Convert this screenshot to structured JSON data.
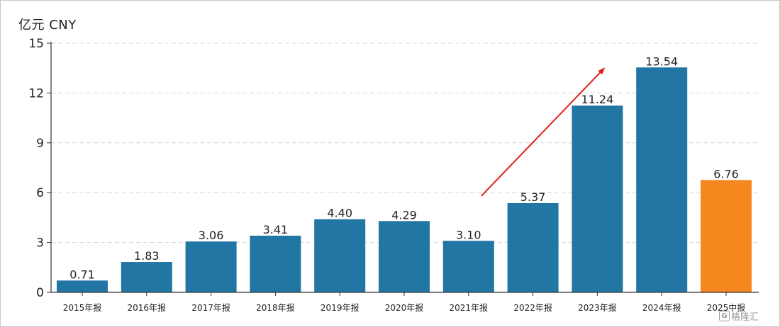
{
  "unit_label": "亿元  CNY",
  "watermark": "格隆汇",
  "colors": {
    "bar": "#2176a3",
    "highlight": "#f5871f",
    "trend_arrow": "#e0201b",
    "grid": "#d5d5d5"
  },
  "chart_data": {
    "type": "bar",
    "categories": [
      "2015年报",
      "2016年报",
      "2017年报",
      "2018年报",
      "2019年报",
      "2020年报",
      "2021年报",
      "2022年报",
      "2023年报",
      "2024年报",
      "2025中报"
    ],
    "values": [
      0.71,
      1.83,
      3.06,
      3.41,
      4.4,
      4.29,
      3.1,
      5.37,
      11.24,
      13.54,
      6.76
    ],
    "data_labels": [
      "0.71",
      "1.83",
      "3.06",
      "3.41",
      "4.40",
      "4.29",
      "3.10",
      "5.37",
      "11.24",
      "13.54",
      "6.76"
    ],
    "highlight_index": 10,
    "ylabel": "亿元  CNY",
    "ylim": [
      0,
      15
    ],
    "yticks": [
      0,
      3,
      6,
      9,
      12,
      15
    ],
    "grid": true,
    "annotations": [
      {
        "type": "arrow",
        "from": [
          "2021年报",
          5.8
        ],
        "to": [
          "2023年报",
          13.5
        ]
      }
    ]
  }
}
